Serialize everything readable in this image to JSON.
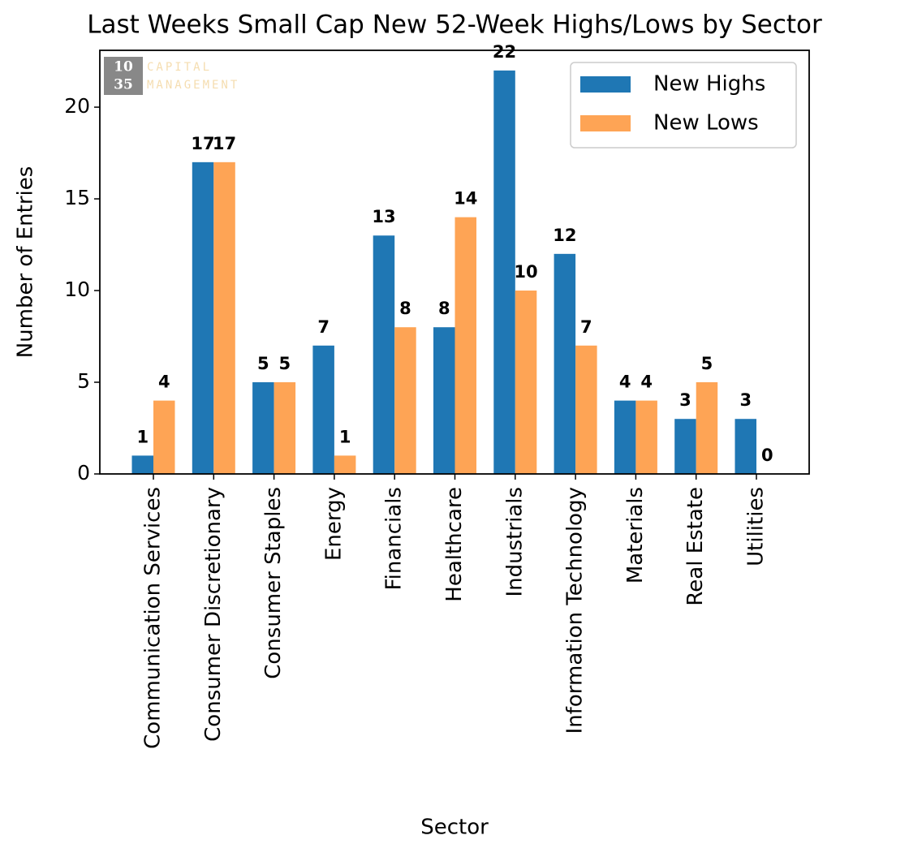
{
  "chart_data": {
    "type": "bar",
    "title": "Last Weeks Small Cap New 52-Week Highs/Lows by Sector",
    "x_label": "Sector",
    "y_label": "Number of Entries",
    "categories": [
      "Communication Services",
      "Consumer Discretionary",
      "Consumer Staples",
      "Energy",
      "Financials",
      "Healthcare",
      "Industrials",
      "Information Technology",
      "Materials",
      "Real Estate",
      "Utilities"
    ],
    "series": [
      {
        "name": "New Highs",
        "color": "#1f77b4",
        "values": [
          1,
          17,
          5,
          7,
          13,
          8,
          22,
          12,
          4,
          3,
          3
        ]
      },
      {
        "name": "New Lows",
        "color": "#fea455",
        "values": [
          4,
          17,
          5,
          1,
          8,
          14,
          10,
          7,
          4,
          5,
          0
        ]
      }
    ],
    "ylim": [
      0,
      23.1
    ],
    "yticks": [
      0,
      5,
      10,
      15,
      20
    ],
    "legend": "upper right",
    "watermark": {
      "number_top": "10",
      "number_bottom": "35",
      "line1": "CAPITAL",
      "line2": "MANAGEMENT"
    }
  }
}
